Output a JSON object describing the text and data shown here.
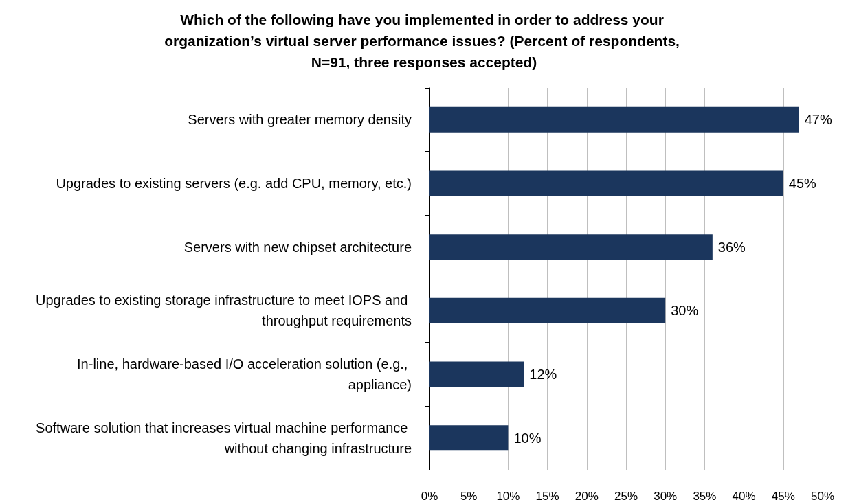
{
  "chart_data": {
    "type": "bar",
    "orientation": "horizontal",
    "title": "Which of the following have you implemented in order to address your organization’s virtual server performance issues? (Percent of respondents, N=91, three responses accepted)",
    "categories": [
      "Servers with greater memory density",
      "Upgrades to existing servers (e.g. add CPU, memory, etc.)",
      "Servers with new chipset architecture",
      "Upgrades to existing storage infrastructure to meet IOPS and throughput requirements",
      "In-line, hardware-based I/O acceleration solution (e.g., appliance)",
      "Software solution that increases virtual machine performance without changing infrastructure"
    ],
    "values": [
      47,
      45,
      36,
      30,
      12,
      10
    ],
    "value_labels": [
      "47%",
      "45%",
      "36%",
      "30%",
      "12%",
      "10%"
    ],
    "color": "#1b365d",
    "xlim": [
      0,
      50
    ],
    "xticks": [
      {
        "value": 0,
        "label": "0%"
      },
      {
        "value": 5,
        "label": "5%"
      },
      {
        "value": 10,
        "label": "10%"
      },
      {
        "value": 15,
        "label": "15%"
      },
      {
        "value": 20,
        "label": "20%"
      },
      {
        "value": 25,
        "label": "25%"
      },
      {
        "value": 30,
        "label": "30%"
      },
      {
        "value": 35,
        "label": "35%"
      },
      {
        "value": 40,
        "label": "40%"
      },
      {
        "value": 45,
        "label": "45%"
      },
      {
        "value": 50,
        "label": "50%"
      }
    ],
    "grid": "x"
  }
}
